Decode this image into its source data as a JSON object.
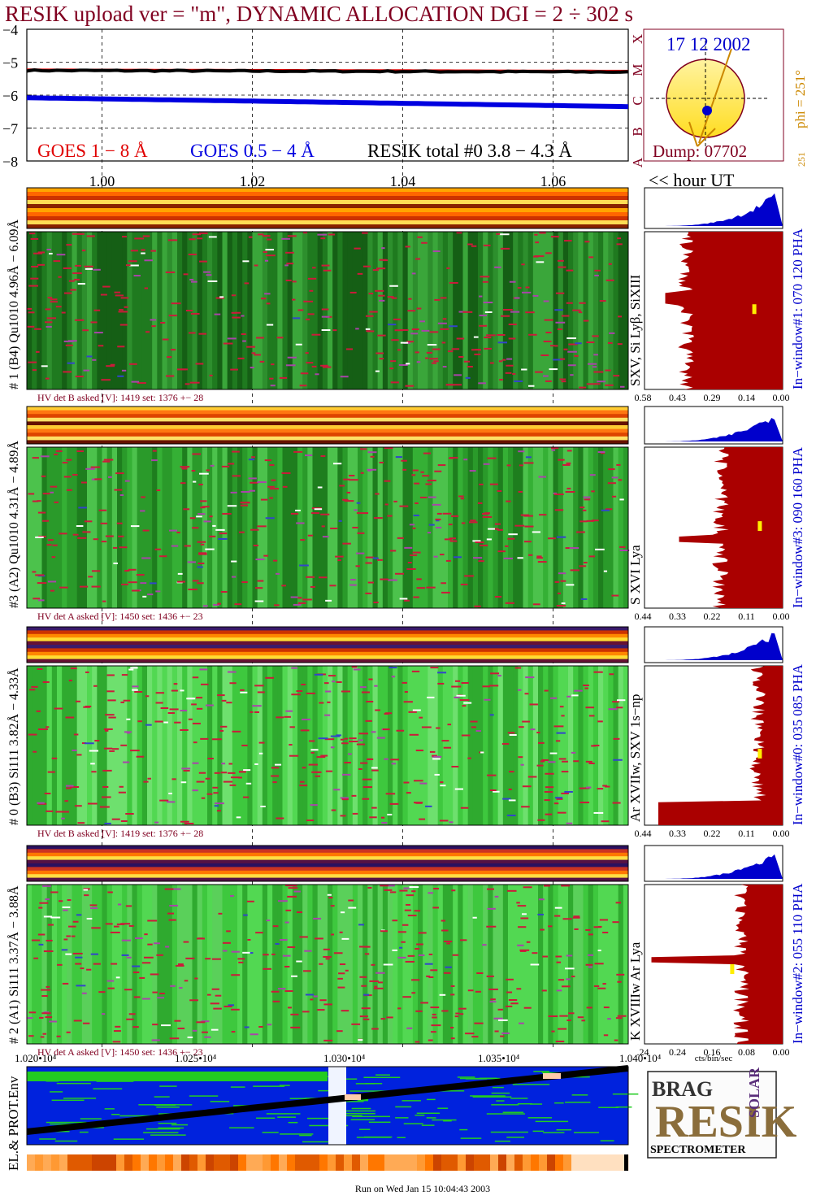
{
  "header": {
    "title": "RESIK upload ver = \"m\", DYNAMIC ALLOCATION  DGI =   2 ÷ 302 s",
    "footer": "Run on Wed Jan 15 10:04:43 2003"
  },
  "colors": {
    "title": "#800020",
    "goes_long": "#e00000",
    "goes_short": "#0000e0",
    "resik_total": "#000000",
    "histogram_fill": "#aa0000",
    "pha_fill": "#0000cc",
    "sun_disk": "#ffee33",
    "background_blue": "#0022dd",
    "label_blue": "#0000cc",
    "label_dark": "#000000",
    "hv_label": "#800020"
  },
  "chart_data": [
    {
      "type": "line",
      "name": "lightcurves",
      "y_tick_labels": [
        "−4",
        "−5",
        "−6",
        "−7",
        "−8"
      ],
      "ylim": [
        -8,
        -4
      ],
      "x_tick_labels": [
        "1.00",
        "1.02",
        "1.04",
        "1.06"
      ],
      "xlim": [
        0.99,
        1.07
      ],
      "x_unit_label": "<< hour UT",
      "series": [
        {
          "name": "GOES 1 − 8 Å",
          "x": [
            0.99,
            1.07
          ],
          "y": [
            -5.23,
            -5.27
          ]
        },
        {
          "name": "GOES 0.5 − 4 Å",
          "x": [
            0.99,
            1.07
          ],
          "y": [
            -6.08,
            -6.35
          ]
        },
        {
          "name": "RESIK total #0  3.8 − 4.3 Å",
          "x": [
            0.99,
            1.07
          ],
          "y": [
            -5.25,
            -5.3
          ]
        }
      ],
      "grid": true
    },
    {
      "type": "other",
      "name": "sun_locator",
      "date": "17 12 2002",
      "phi_label": "phi = 251°",
      "phi_value": "251",
      "dump_label": "Dump: 07702",
      "side_letters": [
        "X",
        "M",
        "C",
        "B",
        "A"
      ]
    },
    {
      "type": "heatmap",
      "name": "detector_panels",
      "panels": [
        {
          "id": "#1",
          "left_label": "# 1 (B4) Qu1010 4.96Å − 6.09Å",
          "line_label": "SXV, Si Lyβ, SiXIII",
          "hv_label": "HV det B asked [V]:  1419 set:  1376 +−   28",
          "pha_label": "In−window#1:  070 120 PHA",
          "hist_ticks": [
            "0.58",
            "0.43",
            "0.29",
            "0.14",
            "0.00"
          ]
        },
        {
          "id": "#3",
          "left_label": "#3 (A2) Qu1010  4.31Å  − 4.89Å",
          "line_label": "S XVI Lya",
          "hv_label": "HV det A asked [V]:  1450 set:  1436 +−   23",
          "pha_label": "In−window#3:  090 160 PHA",
          "hist_ticks": [
            "0.44",
            "0.33",
            "0.22",
            "0.11",
            "0.00"
          ]
        },
        {
          "id": "#0",
          "left_label": "# 0 (B3) Si111  3.82Å − 4.33Å",
          "line_label": "Ar XVIIw,  SXV 1s−np",
          "hv_label": "HV det B asked [V]:  1419 set:  1376 +−   28",
          "pha_label": "In−window#0:  035 085 PHA",
          "hist_ticks": [
            "0.44",
            "0.33",
            "0.22",
            "0.11",
            "0.00"
          ]
        },
        {
          "id": "#2",
          "left_label": "# 2 (A1) Si111  3.37Å − 3.88Å",
          "line_label": "K XVIIIw  Ar Lya",
          "hv_label": "HV det A asked [V]:  1450 set:  1436 +−   23",
          "pha_label": "In−window#2:  055 110 PHA",
          "hist_ticks": [
            ".24",
            "0.24",
            "0.16",
            "0.08",
            "0.00"
          ]
        }
      ],
      "hist_xlabel": "cts/bin/sec"
    },
    {
      "type": "heatmap",
      "name": "particle_env",
      "ylabel": "EL.& PROT.Env",
      "x_tick_labels": [
        "1.020•10⁴",
        "1.025•10⁴",
        "1.030•10⁴",
        "1.035•10⁴",
        "1.040•10⁴"
      ],
      "xlim": [
        10200,
        10400
      ]
    }
  ],
  "logo": {
    "letters_main": "RESIK",
    "letters_small_left": "BRAG",
    "letters_small_right": "SOLAR",
    "caption": "SPECTROMETER"
  }
}
